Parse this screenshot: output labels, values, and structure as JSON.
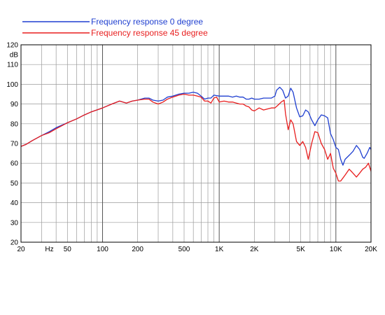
{
  "chart_data": {
    "type": "line",
    "xscale": "log",
    "xlim": [
      20,
      20000
    ],
    "ylim": [
      20,
      120
    ],
    "ylabel": "dB",
    "xlabel": "",
    "grid": true,
    "legend": "top-left",
    "x_tick_labels": [
      {
        "value": 20,
        "label": "20"
      },
      {
        "value": 35,
        "label": "Hz"
      },
      {
        "value": 50,
        "label": "50"
      },
      {
        "value": 100,
        "label": "100"
      },
      {
        "value": 200,
        "label": "200"
      },
      {
        "value": 500,
        "label": "500"
      },
      {
        "value": 1000,
        "label": "1K"
      },
      {
        "value": 2000,
        "label": "2K"
      },
      {
        "value": 5000,
        "label": "5K"
      },
      {
        "value": 10000,
        "label": "10K"
      },
      {
        "value": 20000,
        "label": "20K"
      }
    ],
    "y_ticks": [
      20,
      30,
      40,
      50,
      60,
      70,
      80,
      90,
      100,
      110,
      120
    ],
    "series": [
      {
        "name": "Frequency response 0 degree",
        "color": "#1f3fd0",
        "points": [
          [
            20,
            68.5
          ],
          [
            22,
            69.5
          ],
          [
            25,
            71.5
          ],
          [
            30,
            74
          ],
          [
            35,
            76
          ],
          [
            40,
            78
          ],
          [
            50,
            80.5
          ],
          [
            60,
            82.5
          ],
          [
            70,
            84.5
          ],
          [
            80,
            86
          ],
          [
            100,
            88
          ],
          [
            120,
            90
          ],
          [
            140,
            91.5
          ],
          [
            160,
            90.5
          ],
          [
            180,
            91.5
          ],
          [
            200,
            92
          ],
          [
            230,
            93
          ],
          [
            250,
            93
          ],
          [
            270,
            92
          ],
          [
            300,
            91.5
          ],
          [
            330,
            92
          ],
          [
            360,
            93.5
          ],
          [
            400,
            94
          ],
          [
            450,
            95
          ],
          [
            500,
            95.5
          ],
          [
            550,
            95.5
          ],
          [
            600,
            96
          ],
          [
            650,
            95.5
          ],
          [
            700,
            94
          ],
          [
            750,
            92.5
          ],
          [
            800,
            93
          ],
          [
            850,
            93
          ],
          [
            900,
            94.5
          ],
          [
            1000,
            94
          ],
          [
            1100,
            94
          ],
          [
            1200,
            94
          ],
          [
            1300,
            93.5
          ],
          [
            1400,
            94
          ],
          [
            1500,
            93.5
          ],
          [
            1600,
            93.5
          ],
          [
            1700,
            92.5
          ],
          [
            1800,
            92.5
          ],
          [
            1900,
            93
          ],
          [
            2000,
            92.5
          ],
          [
            2200,
            92.5
          ],
          [
            2400,
            93
          ],
          [
            2600,
            93
          ],
          [
            2800,
            93
          ],
          [
            3000,
            94
          ],
          [
            3100,
            97
          ],
          [
            3300,
            98.5
          ],
          [
            3500,
            97
          ],
          [
            3700,
            93
          ],
          [
            3900,
            94
          ],
          [
            4100,
            98
          ],
          [
            4300,
            96
          ],
          [
            4600,
            88
          ],
          [
            4900,
            83.5
          ],
          [
            5200,
            84
          ],
          [
            5500,
            87
          ],
          [
            5800,
            86
          ],
          [
            6200,
            82
          ],
          [
            6600,
            79
          ],
          [
            7000,
            82
          ],
          [
            7500,
            84.5
          ],
          [
            8000,
            84
          ],
          [
            8500,
            83
          ],
          [
            9000,
            75
          ],
          [
            9500,
            72
          ],
          [
            10000,
            68
          ],
          [
            10500,
            67
          ],
          [
            11000,
            62
          ],
          [
            11500,
            59
          ],
          [
            12000,
            62
          ],
          [
            13000,
            64
          ],
          [
            14000,
            66
          ],
          [
            15000,
            69
          ],
          [
            16000,
            67
          ],
          [
            17000,
            63
          ],
          [
            17500,
            62.5
          ],
          [
            18500,
            65
          ],
          [
            19500,
            68
          ],
          [
            20000,
            67
          ],
          [
            20500,
            61
          ],
          [
            21500,
            51
          ]
        ]
      },
      {
        "name": "Frequency response 45 degree",
        "color": "#e81e1e",
        "points": [
          [
            20,
            68.5
          ],
          [
            22,
            69.5
          ],
          [
            25,
            71.5
          ],
          [
            30,
            74
          ],
          [
            35,
            75.5
          ],
          [
            40,
            77.5
          ],
          [
            50,
            80.5
          ],
          [
            60,
            82.5
          ],
          [
            70,
            84.5
          ],
          [
            80,
            86
          ],
          [
            100,
            88
          ],
          [
            120,
            90
          ],
          [
            140,
            91.5
          ],
          [
            160,
            90.5
          ],
          [
            180,
            91.5
          ],
          [
            200,
            92
          ],
          [
            230,
            92.5
          ],
          [
            250,
            92.5
          ],
          [
            270,
            91
          ],
          [
            300,
            90
          ],
          [
            330,
            91
          ],
          [
            360,
            92.5
          ],
          [
            400,
            93.5
          ],
          [
            450,
            94.5
          ],
          [
            500,
            95
          ],
          [
            550,
            94.5
          ],
          [
            600,
            94.5
          ],
          [
            650,
            94
          ],
          [
            700,
            93.5
          ],
          [
            750,
            91.5
          ],
          [
            800,
            91.5
          ],
          [
            850,
            90.5
          ],
          [
            900,
            93
          ],
          [
            950,
            93.5
          ],
          [
            1000,
            91
          ],
          [
            1100,
            91.5
          ],
          [
            1200,
            91
          ],
          [
            1300,
            91
          ],
          [
            1400,
            90.5
          ],
          [
            1500,
            90
          ],
          [
            1600,
            90
          ],
          [
            1700,
            89
          ],
          [
            1800,
            88.5
          ],
          [
            1900,
            87
          ],
          [
            2000,
            86.5
          ],
          [
            2200,
            88
          ],
          [
            2400,
            87
          ],
          [
            2600,
            87.5
          ],
          [
            2800,
            88
          ],
          [
            3000,
            88
          ],
          [
            3200,
            89.5
          ],
          [
            3400,
            91
          ],
          [
            3600,
            92
          ],
          [
            3700,
            85
          ],
          [
            3900,
            77
          ],
          [
            4100,
            82
          ],
          [
            4300,
            80
          ],
          [
            4600,
            71
          ],
          [
            4900,
            69
          ],
          [
            5200,
            71
          ],
          [
            5500,
            68
          ],
          [
            5800,
            62
          ],
          [
            6200,
            70
          ],
          [
            6600,
            76
          ],
          [
            7000,
            75.5
          ],
          [
            7500,
            70
          ],
          [
            8000,
            67
          ],
          [
            8500,
            62
          ],
          [
            9000,
            65
          ],
          [
            9500,
            57.5
          ],
          [
            10000,
            55
          ],
          [
            10500,
            51
          ],
          [
            11000,
            51
          ],
          [
            11500,
            52.5
          ],
          [
            12000,
            54
          ],
          [
            13000,
            57
          ],
          [
            13500,
            56
          ],
          [
            14000,
            55
          ],
          [
            15000,
            53
          ],
          [
            16000,
            55
          ],
          [
            17000,
            57
          ],
          [
            18000,
            58
          ],
          [
            19000,
            60
          ],
          [
            20000,
            56
          ],
          [
            20500,
            50
          ],
          [
            21000,
            54.5
          ]
        ]
      }
    ]
  }
}
